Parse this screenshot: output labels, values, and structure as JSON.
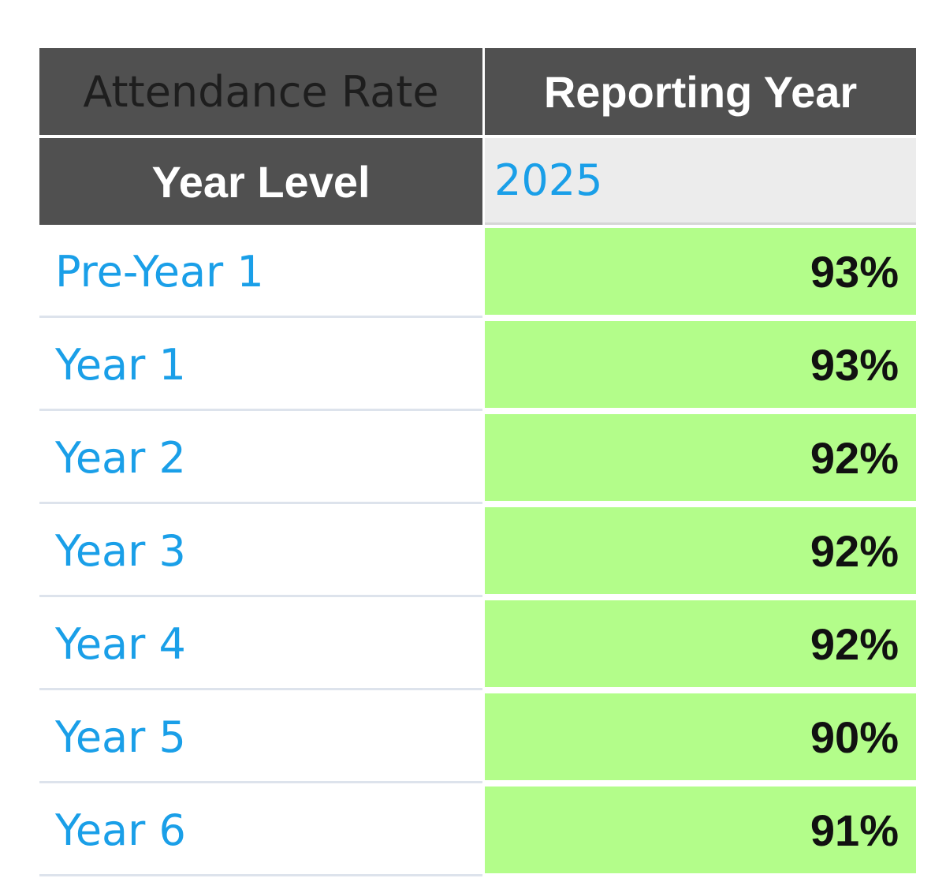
{
  "table": {
    "corner_label": "Attendance Rate",
    "column_header": "Reporting Year",
    "row_header": "Year Level",
    "year": "2025",
    "rows": [
      {
        "level": "Pre-Year 1",
        "value": "93%"
      },
      {
        "level": "Year 1",
        "value": "93%"
      },
      {
        "level": "Year 2",
        "value": "92%"
      },
      {
        "level": "Year 3",
        "value": "92%"
      },
      {
        "level": "Year 4",
        "value": "92%"
      },
      {
        "level": "Year 5",
        "value": "90%"
      },
      {
        "level": "Year 6",
        "value": "91%"
      }
    ]
  },
  "colors": {
    "header_bg": "#505050",
    "link": "#1a9fe8",
    "value_bg": "#b3fd8a",
    "year_cell_bg": "#ececec"
  }
}
